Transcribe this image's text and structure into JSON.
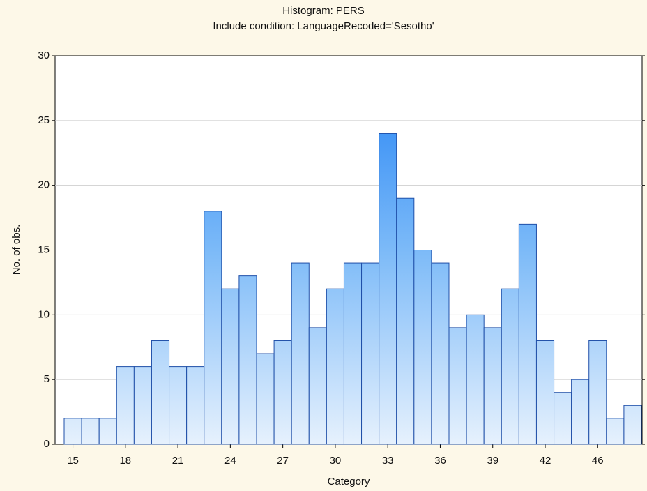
{
  "chart_data": {
    "type": "bar",
    "title": "Histogram: PERS",
    "subtitle": "Include condition: LanguageRecoded='Sesotho'",
    "x_label": "Category",
    "y_label": "No. of obs.",
    "categories": [
      15,
      null,
      null,
      18,
      null,
      null,
      21,
      null,
      null,
      24,
      null,
      null,
      27,
      null,
      null,
      30,
      null,
      null,
      33,
      null,
      null,
      36,
      null,
      null,
      39,
      null,
      null,
      42,
      null,
      null,
      46,
      null,
      null
    ],
    "values": [
      2,
      2,
      2,
      6,
      6,
      8,
      6,
      6,
      18,
      12,
      13,
      7,
      8,
      14,
      9,
      12,
      14,
      14,
      24,
      19,
      15,
      14,
      9,
      10,
      9,
      12,
      17,
      8,
      4,
      5,
      8,
      2,
      3
    ],
    "color": "#3a8ef0",
    "ylim": [
      0,
      30
    ],
    "yticks": [
      0,
      5,
      10,
      15,
      20,
      25,
      30
    ],
    "grid": true
  }
}
